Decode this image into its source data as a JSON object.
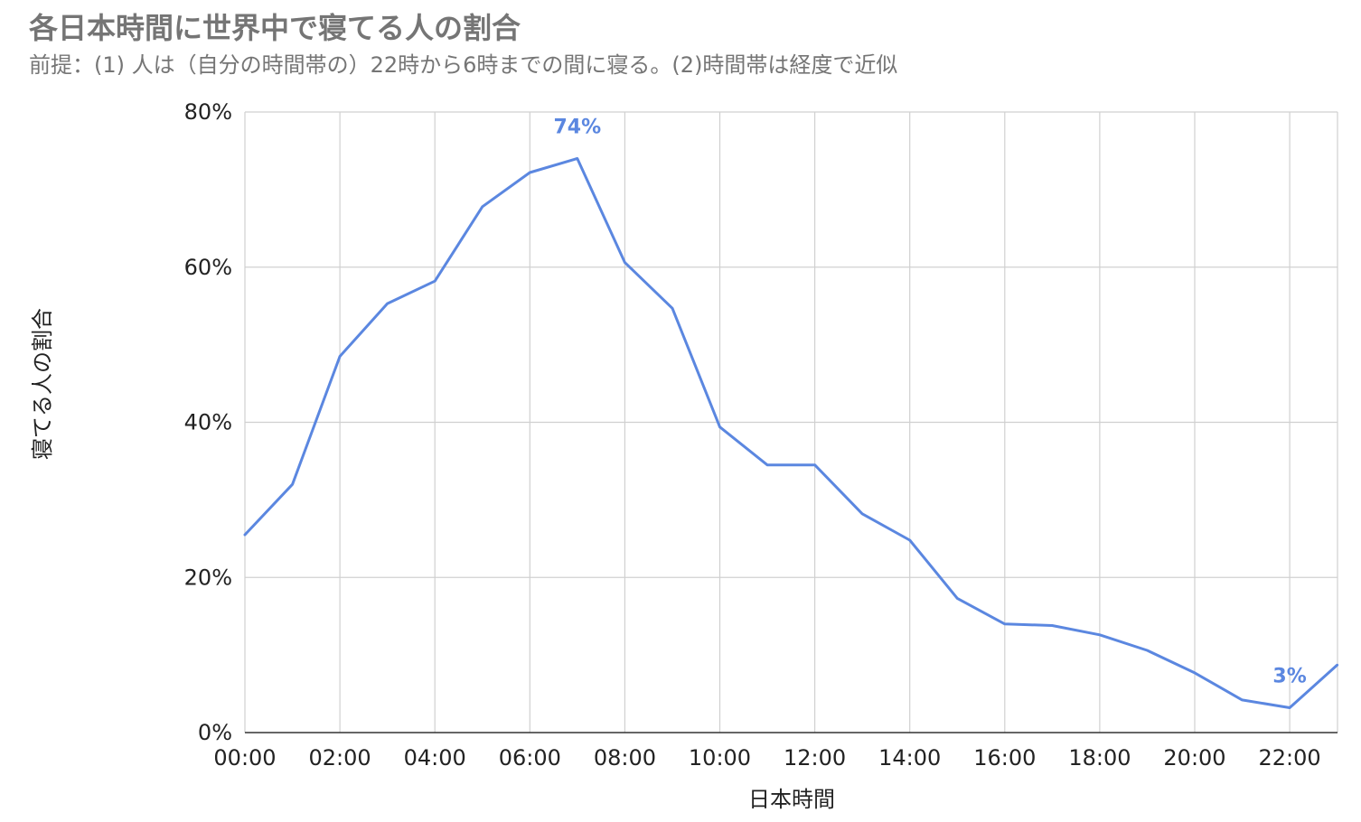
{
  "chart_data": {
    "type": "line",
    "title": "各日本時間に世界中で寝てる人の割合",
    "subtitle": "前提：(1) 人は（自分の時間帯の）22時から6時までの間に寝る。(2)時間帯は経度で近似",
    "xlabel": "日本時間",
    "ylabel": "寝てる人の割合",
    "x": [
      "00:00",
      "01:00",
      "02:00",
      "03:00",
      "04:00",
      "05:00",
      "06:00",
      "07:00",
      "08:00",
      "09:00",
      "10:00",
      "11:00",
      "12:00",
      "13:00",
      "14:00",
      "15:00",
      "16:00",
      "17:00",
      "18:00",
      "19:00",
      "20:00",
      "21:00",
      "22:00",
      "23:00"
    ],
    "x_tick_labels": [
      "00:00",
      "02:00",
      "04:00",
      "06:00",
      "08:00",
      "10:00",
      "12:00",
      "14:00",
      "16:00",
      "18:00",
      "20:00",
      "22:00"
    ],
    "y_tick_labels": [
      "0%",
      "20%",
      "40%",
      "60%",
      "80%"
    ],
    "ylim": [
      0,
      80
    ],
    "grid": true,
    "series": [
      {
        "values": [
          25.5,
          32,
          48.5,
          55.3,
          58.2,
          67.8,
          72.2,
          74,
          60.6,
          54.7,
          39.4,
          34.5,
          34.5,
          28.2,
          24.8,
          17.3,
          14,
          13.8,
          12.6,
          10.6,
          7.7,
          4.2,
          3.2,
          8.7
        ],
        "color": "#5b87e0"
      }
    ],
    "annotations": [
      {
        "index": 7,
        "text": "74%"
      },
      {
        "index": 22,
        "text": "3%"
      }
    ]
  }
}
